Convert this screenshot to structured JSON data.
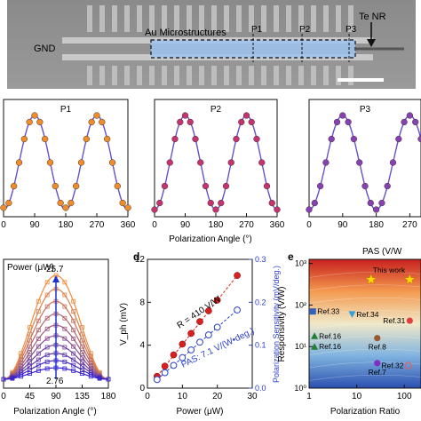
{
  "micrograph": {
    "label_gnd": "GND",
    "label_au": "Au Microstructures",
    "label_p1": "P1",
    "label_p2": "P2",
    "label_p3": "P3",
    "label_te": "Te NR"
  },
  "colors": {
    "p1": "#f28c28",
    "p2": "#c8326e",
    "p3": "#8a3fb2",
    "fit": "#6a4fc8",
    "red_series": "#d92020",
    "blue_series": "#2a3fd0"
  },
  "chart_data": [
    {
      "id": "row_b",
      "type": "scatter",
      "xlabel": "Polarization Angle (°)",
      "xlim": [
        0,
        360
      ],
      "xticks": [
        0,
        90,
        180,
        270,
        360
      ],
      "panels": [
        {
          "title": "P1",
          "tick_labels": [
            "0",
            "90",
            "180",
            "270",
            "360"
          ],
          "x": [
            0,
            15,
            30,
            45,
            60,
            75,
            90,
            105,
            120,
            135,
            150,
            165,
            180,
            195,
            210,
            225,
            240,
            255,
            270,
            285,
            300,
            315,
            330,
            345,
            360
          ],
          "y": [
            0.02,
            0.07,
            0.25,
            0.5,
            0.75,
            0.93,
            1.0,
            0.93,
            0.75,
            0.5,
            0.25,
            0.07,
            0.02,
            0.07,
            0.25,
            0.5,
            0.75,
            0.93,
            1.0,
            0.93,
            0.75,
            0.5,
            0.25,
            0.07,
            0.02
          ]
        },
        {
          "title": "P2",
          "tick_labels": [
            "0",
            "90",
            "180",
            "270",
            "360"
          ],
          "x": [
            0,
            15,
            30,
            45,
            60,
            75,
            90,
            105,
            120,
            135,
            150,
            165,
            180,
            195,
            210,
            225,
            240,
            255,
            270,
            285,
            300,
            315,
            330,
            345,
            360
          ],
          "y": [
            0.0,
            0.07,
            0.25,
            0.5,
            0.75,
            0.93,
            1.0,
            0.93,
            0.75,
            0.5,
            0.25,
            0.07,
            0.0,
            0.07,
            0.25,
            0.5,
            0.75,
            0.93,
            1.0,
            0.93,
            0.75,
            0.5,
            0.25,
            0.07,
            0.0
          ]
        },
        {
          "title": "P3",
          "tick_labels": [
            "0",
            "90",
            "180",
            "270"
          ],
          "x": [
            0,
            15,
            30,
            45,
            60,
            75,
            90,
            105,
            120,
            135,
            150,
            165,
            180,
            195,
            210,
            225,
            240,
            255,
            270,
            285,
            300
          ],
          "y": [
            0.0,
            0.07,
            0.25,
            0.5,
            0.75,
            0.93,
            1.0,
            0.93,
            0.75,
            0.5,
            0.25,
            0.07,
            0.0,
            0.07,
            0.25,
            0.5,
            0.75,
            0.93,
            1.0,
            0.93,
            0.75
          ]
        }
      ]
    },
    {
      "id": "c",
      "type": "line",
      "title": "Power (μW)",
      "xlabel": "Polarization Angle (°)",
      "xlim": [
        0,
        180
      ],
      "xticks": [
        "0",
        "45",
        "90",
        "135",
        "180"
      ],
      "top_label": "25.7",
      "bottom_label": "2.76",
      "amplitudes": [
        1.0,
        0.87,
        0.75,
        0.63,
        0.52,
        0.42,
        0.33,
        0.25,
        0.18,
        0.11
      ]
    },
    {
      "id": "d",
      "type": "scatter",
      "panel_letter": "d",
      "xlabel": "Power (μW)",
      "ylabel": "V_ph (mV)",
      "y2label": "Polarization Sensitivity (mV/deg.)",
      "xlim": [
        0,
        30
      ],
      "ylim": [
        0,
        12
      ],
      "y2lim": [
        0,
        0.3
      ],
      "xticks": [
        "0",
        "10",
        "20",
        "30"
      ],
      "yticks": [
        "0",
        "4",
        "8",
        "12"
      ],
      "y2ticks": [
        "0.0",
        "0.1",
        "0.2",
        "0.3"
      ],
      "series": [
        {
          "name": "R = 410 V/W",
          "color": "red",
          "x": [
            2.76,
            5,
            7.5,
            10,
            12.5,
            15,
            17.5,
            20,
            25.7
          ],
          "y": [
            1.1,
            2.05,
            3.1,
            4.1,
            5.1,
            6.2,
            7.2,
            8.2,
            10.5
          ]
        },
        {
          "name": "PAS: 7.1 V/(W•deg.)",
          "color": "blue",
          "x": [
            2.76,
            5,
            7.5,
            10,
            12.5,
            15,
            17.5,
            20,
            25.7
          ],
          "y2": [
            0.02,
            0.036,
            0.053,
            0.071,
            0.089,
            0.107,
            0.124,
            0.142,
            0.182
          ]
        }
      ]
    },
    {
      "id": "e",
      "type": "heatmap",
      "panel_letter": "e",
      "title": "PAS (V/W",
      "xlabel": "Polarization Ratio",
      "ylabel": "Responsivity (V/W)",
      "xticks": [
        "1",
        "10",
        "100"
      ],
      "yticks": [
        "10⁰",
        "10¹",
        "10²",
        "10³"
      ],
      "points": [
        {
          "label": "This work",
          "marker": "star",
          "color": "#ffd700",
          "x": 20,
          "y": 410
        },
        {
          "label": "",
          "marker": "star",
          "color": "#ffd700",
          "x": 130,
          "y": 410
        },
        {
          "label": "Ref.33",
          "marker": "square",
          "color": "#3060c0",
          "x": 1.2,
          "y": 70
        },
        {
          "label": "Ref.34",
          "marker": "triangle-down",
          "color": "#30a0e0",
          "x": 8,
          "y": 60
        },
        {
          "label": "Ref.16",
          "marker": "triangle",
          "color": "#208030",
          "x": 1.3,
          "y": 18
        },
        {
          "label": "Ref.16",
          "marker": "triangle",
          "color": "#208030",
          "x": 1.3,
          "y": 10
        },
        {
          "label": "Ref.8",
          "marker": "circle",
          "color": "#9a5a30",
          "x": 27,
          "y": 16
        },
        {
          "label": "Ref.31",
          "marker": "circle",
          "color": "#e04040",
          "x": 130,
          "y": 42
        },
        {
          "label": "Ref.7",
          "marker": "circle",
          "color": "#8030c0",
          "x": 27,
          "y": 4
        },
        {
          "label": "Ref.32",
          "marker": "circle-open",
          "color": "#e06060",
          "x": 120,
          "y": 3.5
        }
      ]
    }
  ]
}
